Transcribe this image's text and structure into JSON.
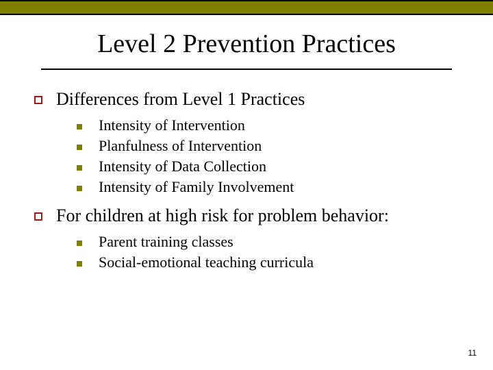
{
  "colors": {
    "top_bar_bg": "#808000",
    "top_bar_border": "#000000",
    "title_underline": "#000000",
    "main_bullet_border": "#9b1c1c",
    "sub_bullet_fill": "#808000",
    "text_color": "#000000",
    "background": "#ffffff"
  },
  "typography": {
    "title_fontsize": 38,
    "main_bullet_fontsize": 26,
    "sub_bullet_fontsize": 22,
    "page_number_fontsize": 12,
    "font_family": "Times New Roman"
  },
  "title": "Level 2 Prevention Practices",
  "sections": [
    {
      "heading": "Differences from Level 1 Practices",
      "items": [
        "Intensity of Intervention",
        "Planfulness of Intervention",
        "Intensity of Data Collection",
        "Intensity of Family Involvement"
      ]
    },
    {
      "heading": "For children at high risk for problem behavior:",
      "items": [
        "Parent training classes",
        "Social-emotional teaching curricula"
      ]
    }
  ],
  "page_number": "11"
}
